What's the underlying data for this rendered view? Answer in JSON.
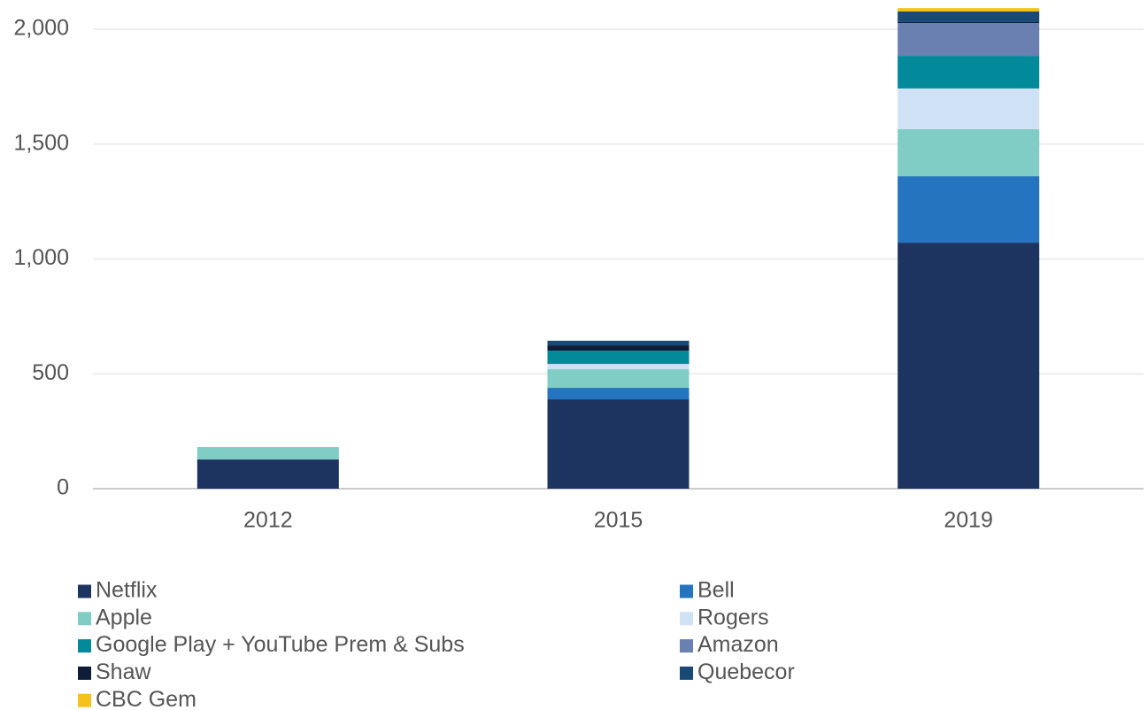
{
  "chart_data": {
    "type": "stacked_bar",
    "categories": [
      "2012",
      "2015",
      "2019"
    ],
    "series": [
      {
        "name": "Netflix",
        "color": "#1d3461",
        "values": [
          127,
          389,
          1071
        ]
      },
      {
        "name": "Bell",
        "color": "#2474bf",
        "values": [
          0,
          50,
          289
        ]
      },
      {
        "name": "Apple",
        "color": "#7fcdc4",
        "values": [
          54,
          81,
          205
        ]
      },
      {
        "name": "Rogers",
        "color": "#cfe2f5",
        "values": [
          0,
          23,
          177
        ]
      },
      {
        "name": "Google Play + YouTube Prem & Subs",
        "color": "#038a9a",
        "values": [
          0,
          58,
          142
        ]
      },
      {
        "name": "Amazon",
        "color": "#6a80b0",
        "values": [
          0,
          0,
          143
        ]
      },
      {
        "name": "Shaw",
        "color": "#0f1d36",
        "values": [
          0,
          23,
          4
        ]
      },
      {
        "name": "Quebecor",
        "color": "#194a75",
        "values": [
          0,
          20,
          46
        ]
      },
      {
        "name": "CBC Gem",
        "color": "#f5c21b",
        "values": [
          0,
          0,
          15
        ]
      }
    ],
    "ylim": [
      0,
      2000
    ],
    "yticks": [
      0,
      500,
      {
        "value": 1000,
        "label": "1,000"
      },
      {
        "value": 1500,
        "label": "1,500"
      },
      {
        "value": 2000,
        "label": "2,000"
      }
    ],
    "grid": true
  }
}
